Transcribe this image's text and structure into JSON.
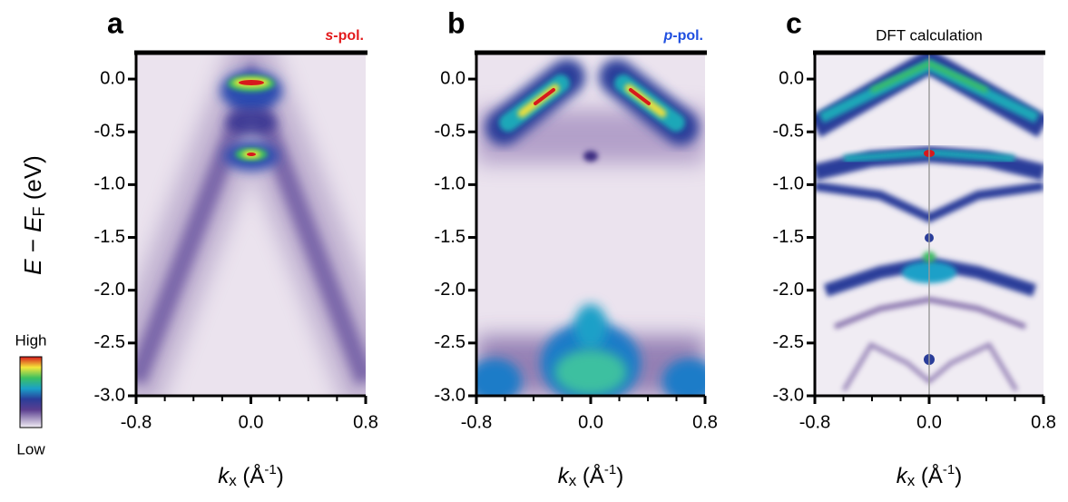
{
  "chart_data": [
    {
      "type": "heatmap",
      "panel": "a",
      "annotation": [
        "s",
        "-pol."
      ],
      "annotation_color": "#e31a1c",
      "ylabel": [
        "E",
        " − ",
        "E",
        "F",
        " (eV)"
      ],
      "xlabel": [
        "k",
        "x",
        " (Å",
        "-1",
        ")"
      ],
      "xlim": [
        -0.8,
        0.8
      ],
      "xticks": [
        -0.8,
        {
          "value": 0,
          "label": "0.0"
        },
        0.8
      ],
      "xminorticks": [
        -0.6,
        -0.4,
        -0.2,
        0.2,
        0.4,
        0.6
      ],
      "ylim": [
        -3.0,
        0.25
      ],
      "yticks": [
        {
          "value": 0,
          "label": "0.0"
        },
        -0.5,
        {
          "value": -1,
          "label": "-1.0"
        },
        -1.5,
        {
          "value": -2,
          "label": "-2.0"
        },
        -2.5,
        {
          "value": -3,
          "label": "-3.0"
        }
      ],
      "colorbar": {
        "high": "High",
        "low": "Low"
      }
    },
    {
      "type": "heatmap",
      "panel": "b",
      "annotation": [
        "p",
        "-pol."
      ],
      "annotation_color": "#1f4fe0",
      "xlabel": [
        "k",
        "x",
        " (Å",
        "-1",
        ")"
      ],
      "xlim": [
        -0.8,
        0.8
      ],
      "xticks": [
        -0.8,
        {
          "value": 0,
          "label": "0.0"
        },
        0.8
      ],
      "xminorticks": [
        -0.6,
        -0.4,
        -0.2,
        0.2,
        0.4,
        0.6
      ],
      "ylim": [
        -3.0,
        0.25
      ],
      "yticks": [
        {
          "value": 0,
          "label": "0.0"
        },
        -0.5,
        {
          "value": -1,
          "label": "-1.0"
        },
        -1.5,
        {
          "value": -2,
          "label": "-2.0"
        },
        -2.5,
        {
          "value": -3,
          "label": "-3.0"
        }
      ]
    },
    {
      "type": "heatmap",
      "panel": "c",
      "title": "DFT calculation",
      "xlabel": [
        "k",
        "x",
        " (Å",
        "-1",
        ")"
      ],
      "xlim": [
        -0.8,
        0.8
      ],
      "xticks": [
        -0.8,
        {
          "value": 0,
          "label": "0.0"
        },
        0.8
      ],
      "xminorticks": [
        -0.6,
        -0.4,
        -0.2,
        0.2,
        0.4,
        0.6
      ],
      "ylim": [
        -3.0,
        0.25
      ],
      "yticks": [
        {
          "value": 0,
          "label": "0.0"
        },
        -0.5,
        {
          "value": -1,
          "label": "-1.0"
        },
        -1.5,
        {
          "value": -2,
          "label": "-2.0"
        },
        -2.5,
        {
          "value": -3,
          "label": "-3.0"
        }
      ]
    }
  ]
}
